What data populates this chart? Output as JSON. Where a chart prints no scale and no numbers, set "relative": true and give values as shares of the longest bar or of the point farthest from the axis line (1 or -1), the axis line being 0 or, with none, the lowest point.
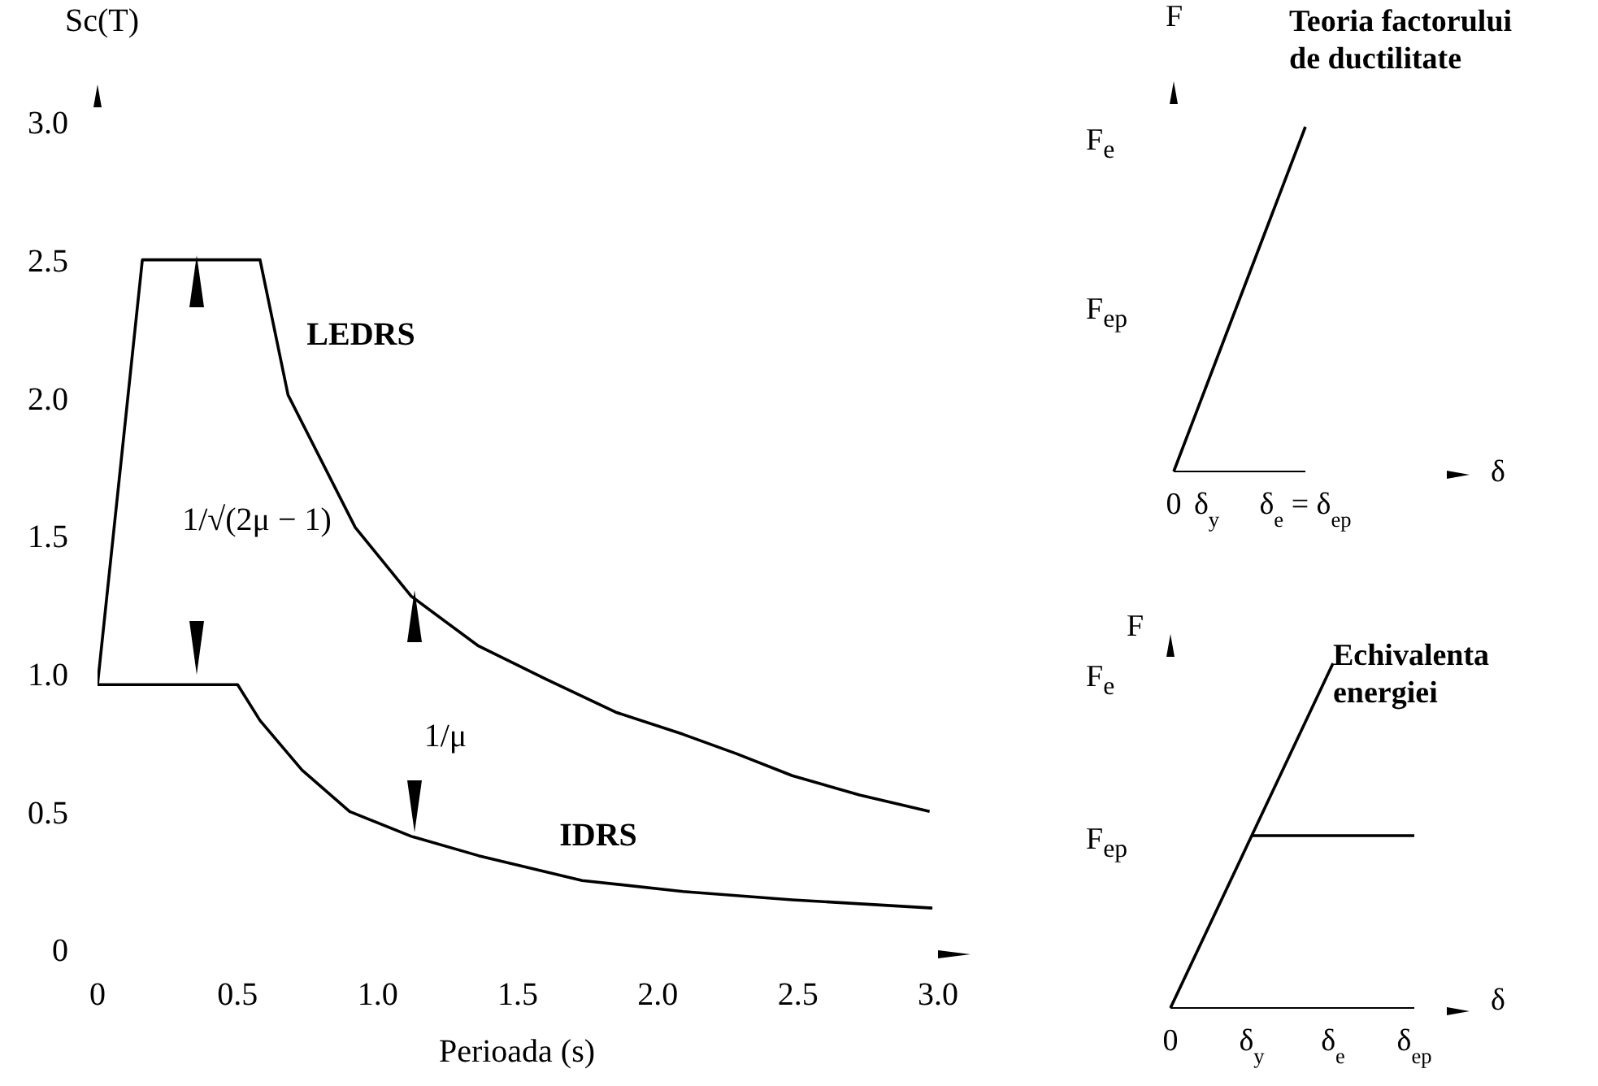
{
  "chart_data": [
    {
      "type": "line",
      "xlabel": "Perioada (s)",
      "ylabel": "Sc(T)",
      "xlim": [
        0,
        3
      ],
      "ylim": [
        0,
        3
      ],
      "xticks": [
        0,
        0.5,
        {
          "value": 1,
          "label": "1.0"
        },
        1.5,
        {
          "value": 2,
          "label": "2.0"
        },
        2.5,
        {
          "value": 3,
          "label": "3.0"
        }
      ],
      "yticks": [
        0,
        0.5,
        {
          "value": 1,
          "label": "1.0"
        },
        1.5,
        {
          "value": 2,
          "label": "2.0"
        },
        2.5,
        {
          "value": 3,
          "label": "3.0"
        }
      ],
      "grid": false,
      "marker": "none",
      "series": [
        {
          "color": "#000000",
          "x": [
            0,
            0.16,
            0.58,
            0.68,
            0.92,
            1.12,
            1.36,
            1.6,
            1.85,
            2.09,
            2.28,
            2.48,
            2.72,
            2.97
          ],
          "values": [
            0.96,
            2.5,
            2.5,
            2.01,
            1.53,
            1.28,
            1.1,
            0.98,
            0.86,
            0.78,
            0.71,
            0.63,
            0.56,
            0.5
          ]
        },
        {
          "color": "#000000",
          "x": [
            0,
            0.5,
            0.58,
            0.73,
            0.9,
            1.12,
            1.36,
            1.73,
            2.09,
            2.48,
            2.98
          ],
          "values": [
            0.96,
            0.96,
            0.83,
            0.65,
            0.5,
            0.41,
            0.34,
            0.25,
            0.21,
            0.18,
            0.15
          ]
        }
      ],
      "annotations": [
        "LEDRS",
        "1/√(2μ − 1)",
        "1/μ",
        "IDRS"
      ]
    },
    {
      "type": "line",
      "relative": true,
      "title": "Teoria factorului de ductilitate",
      "xlabel": "δ",
      "ylabel": "F",
      "marker": "none",
      "categories": [
        "0",
        "δ$_{y}$",
        null,
        null,
        "δ$_{e}$ = δ$_{ep}$"
      ],
      "series": [
        {
          "color": "#000000",
          "values": [
            0,
            0.25,
            0.5,
            0.75,
            1
          ]
        }
      ],
      "annotations": [
        "F$_{e}$",
        "F$_{ep}$"
      ]
    },
    {
      "type": "line",
      "relative": true,
      "title": "Echivalenta energiei",
      "xlabel": "δ",
      "ylabel": "F",
      "marker": "none",
      "categories": [
        "0",
        "δ$_{y}$",
        "δ$_{e}$",
        "δ$_{ep}$"
      ],
      "series": [
        {
          "color": "#000000",
          "values": [
            0,
            0.5,
            1,
            null
          ]
        },
        {
          "color": "#000000",
          "values": [
            null,
            0.5,
            0.5,
            0.5
          ]
        }
      ],
      "annotations": [
        "F$_{e}$",
        "F$_{ep}$"
      ]
    }
  ]
}
